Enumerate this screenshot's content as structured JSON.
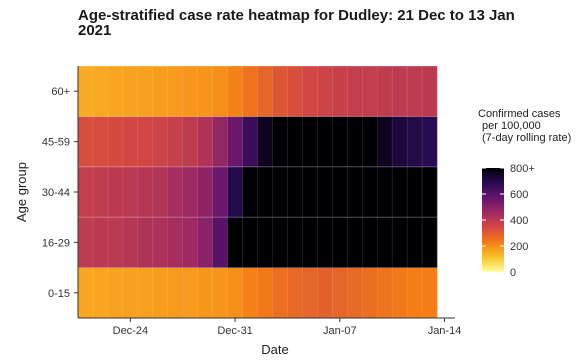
{
  "chart_data": {
    "type": "heatmap",
    "title": "Age-stratified case rate heatmap for Dudley: 21 Dec to 13 Jan 2021",
    "title_lines": [
      "Age-stratified case rate heatmap for Dudley: 21 Dec to 13 Jan",
      "2021"
    ],
    "xlabel": "Date",
    "ylabel": "Age group",
    "x_dates": [
      "Dec-21",
      "Dec-22",
      "Dec-23",
      "Dec-24",
      "Dec-25",
      "Dec-26",
      "Dec-27",
      "Dec-28",
      "Dec-29",
      "Dec-30",
      "Dec-31",
      "Jan-01",
      "Jan-02",
      "Jan-03",
      "Jan-04",
      "Jan-05",
      "Jan-06",
      "Jan-07",
      "Jan-08",
      "Jan-09",
      "Jan-10",
      "Jan-11",
      "Jan-12",
      "Jan-13"
    ],
    "x_ticks": [
      {
        "label": "Dec-24",
        "index": 3
      },
      {
        "label": "Dec-31",
        "index": 10
      },
      {
        "label": "Jan-07",
        "index": 17
      },
      {
        "label": "Jan-14",
        "index": 24
      }
    ],
    "y_categories": [
      "0-15",
      "16-29",
      "30-44",
      "45-59",
      "60+"
    ],
    "values": {
      "60+": [
        150,
        155,
        160,
        165,
        170,
        175,
        180,
        185,
        190,
        200,
        220,
        250,
        280,
        310,
        330,
        350,
        360,
        370,
        380,
        380,
        385,
        390,
        390,
        395
      ],
      "45-59": [
        330,
        335,
        340,
        345,
        350,
        360,
        375,
        390,
        420,
        480,
        560,
        650,
        760,
        800,
        800,
        800,
        800,
        800,
        800,
        800,
        760,
        720,
        700,
        690
      ],
      "30-44": [
        380,
        385,
        395,
        400,
        410,
        420,
        440,
        460,
        490,
        560,
        700,
        800,
        800,
        800,
        800,
        800,
        800,
        800,
        800,
        800,
        800,
        800,
        800,
        800
      ],
      "16-29": [
        390,
        395,
        400,
        410,
        420,
        430,
        445,
        460,
        500,
        600,
        800,
        800,
        800,
        800,
        800,
        800,
        800,
        800,
        800,
        800,
        800,
        800,
        800,
        800
      ],
      "0-15": [
        160,
        160,
        165,
        170,
        170,
        175,
        180,
        180,
        185,
        190,
        200,
        220,
        240,
        260,
        270,
        280,
        290,
        280,
        270,
        260,
        250,
        240,
        230,
        230
      ]
    },
    "legend": {
      "title_lines": [
        "Confirmed cases",
        "per 100,000",
        "(7-day rolling rate)"
      ],
      "ticks": [
        {
          "value": 800,
          "label": "800+"
        },
        {
          "value": 600,
          "label": "600"
        },
        {
          "value": 400,
          "label": "400"
        },
        {
          "value": 200,
          "label": "200"
        },
        {
          "value": 0,
          "label": "0"
        }
      ],
      "range": [
        0,
        800
      ],
      "placement": "right"
    },
    "colorscale": [
      "#fcffa4",
      "#fac228",
      "#f57d15",
      "#d44842",
      "#9f2a63",
      "#65156e",
      "#280b53",
      "#000004"
    ],
    "grid": true
  }
}
